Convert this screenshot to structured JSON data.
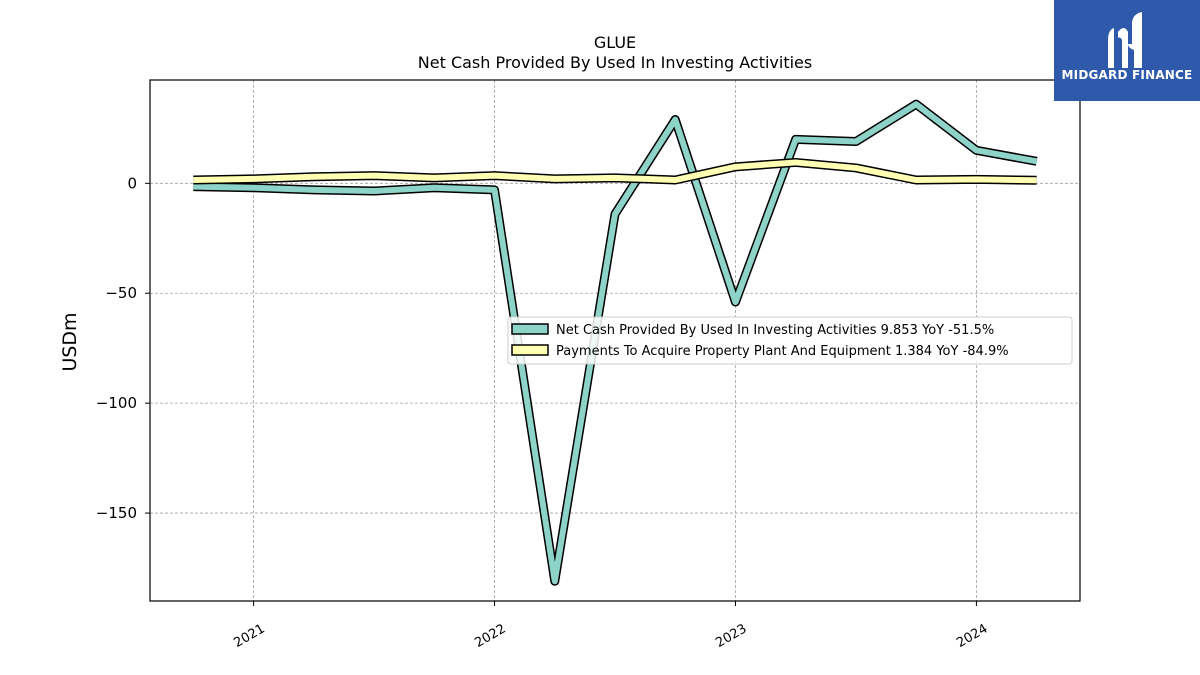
{
  "chart_data": {
    "type": "line",
    "title": "GLUE",
    "subtitle": "Net Cash Provided By Used In Investing Activities",
    "ylabel": "USDm",
    "xlabel": "",
    "ylim": [
      -190,
      47
    ],
    "xlim": [
      2020.57,
      2024.43
    ],
    "yticks": [
      0,
      -50,
      -100,
      -150
    ],
    "ytick_labels": [
      "0",
      "−50",
      "−100",
      "−150"
    ],
    "xticks": [
      2021,
      2022,
      2023,
      2024
    ],
    "xtick_labels": [
      "2021",
      "2022",
      "2023",
      "2024"
    ],
    "grid": true,
    "legend_position": "center-right",
    "x": [
      2020.75,
      2021.0,
      2021.25,
      2021.5,
      2021.75,
      2022.0,
      2022.25,
      2022.5,
      2022.75,
      2023.0,
      2023.25,
      2023.5,
      2023.75,
      2024.0,
      2024.25
    ],
    "series": [
      {
        "name": "Net Cash Provided By Used In Investing Activities",
        "legend_label": "Net Cash Provided By Used In Investing Activities  9.853 YoY -51.5%",
        "color": "#8dd3c7",
        "values": [
          -1.5,
          -2.0,
          -3.0,
          -3.5,
          -2.0,
          -3.0,
          -181.0,
          -14.0,
          29.0,
          -54.0,
          20.0,
          19.0,
          36.0,
          15.0,
          10.0
        ]
      },
      {
        "name": "Payments To Acquire Property Plant And Equipment",
        "legend_label": "Payments To Acquire Property Plant And Equipment  1.384 YoY -84.9%",
        "color": "#ffffb3",
        "values": [
          1.5,
          2.0,
          3.0,
          3.5,
          2.5,
          3.5,
          2.0,
          2.5,
          1.5,
          7.5,
          9.5,
          7.0,
          1.5,
          1.8,
          1.4
        ]
      }
    ]
  },
  "logo": {
    "name": "MIDGARD FINANCE",
    "bg_color": "#2f5aab"
  }
}
